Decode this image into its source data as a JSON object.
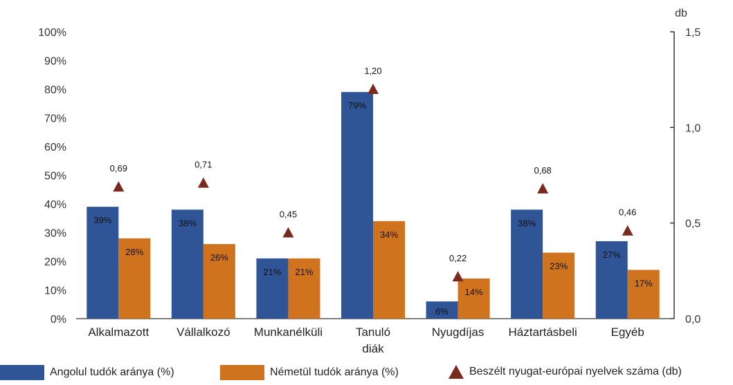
{
  "chart_data": {
    "type": "bar",
    "categories": [
      "Alkalmazott",
      "Vállalkozó",
      "Munkanélküli",
      "Tanuló diák",
      "Nyugdíjas",
      "Háztartásbeli",
      "Egyéb"
    ],
    "category_lines": [
      [
        "Alkalmazott"
      ],
      [
        "Vállalkozó"
      ],
      [
        "Munkanélküli"
      ],
      [
        "Tanuló",
        "diák"
      ],
      [
        "Nyugdíjas"
      ],
      [
        "Háztartásbeli"
      ],
      [
        "Egyéb"
      ]
    ],
    "series": [
      {
        "name": "Angolul tudók aránya (%)",
        "type": "bar",
        "axis": "left",
        "color": "#2f5596",
        "values": [
          39,
          38,
          21,
          79,
          6,
          38,
          27
        ],
        "labels": [
          "39%",
          "38%",
          "21%",
          "79%",
          "6%",
          "38%",
          "27%"
        ]
      },
      {
        "name": "Németül tudók aránya (%)",
        "type": "bar",
        "axis": "left",
        "color": "#d0731e",
        "values": [
          28,
          26,
          21,
          34,
          14,
          23,
          17
        ],
        "labels": [
          "28%",
          "26%",
          "21%",
          "34%",
          "14%",
          "23%",
          "17%"
        ]
      },
      {
        "name": "Beszélt nyugat-európai nyelvek száma (db)",
        "type": "marker",
        "axis": "right",
        "color": "#7a2a1d",
        "values": [
          0.69,
          0.71,
          0.45,
          1.2,
          0.22,
          0.68,
          0.46
        ],
        "labels": [
          "0,69",
          "0,71",
          "0,45",
          "1,20",
          "0,22",
          "0,68",
          "0,46"
        ]
      }
    ],
    "y_left": {
      "ylim": [
        0,
        100
      ],
      "ticks": [
        "0%",
        "10%",
        "20%",
        "30%",
        "40%",
        "50%",
        "60%",
        "70%",
        "80%",
        "90%",
        "100%"
      ]
    },
    "y_right": {
      "unit_label": "db",
      "ylim": [
        0,
        1.5
      ],
      "tick_values": [
        0,
        0.5,
        1.0,
        1.5
      ],
      "ticks": [
        "0,0",
        "0,5",
        "1,0",
        "1,5"
      ]
    },
    "grid": false,
    "legend_position": "bottom"
  }
}
